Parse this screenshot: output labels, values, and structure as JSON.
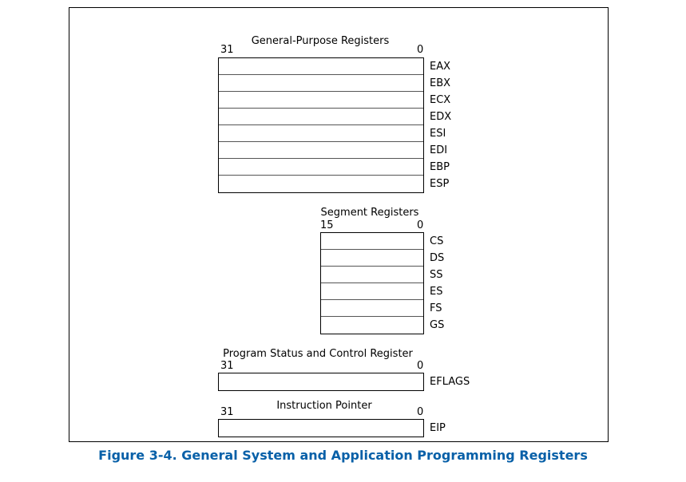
{
  "colors": {
    "caption": "#0860a8",
    "border": "#000000"
  },
  "general_purpose": {
    "title": "General-Purpose Registers",
    "high_bit": "31",
    "low_bit": "0",
    "registers": [
      "EAX",
      "EBX",
      "ECX",
      "EDX",
      "ESI",
      "EDI",
      "EBP",
      "ESP"
    ]
  },
  "segment": {
    "title": "Segment Registers",
    "high_bit": "15",
    "low_bit": "0",
    "registers": [
      "CS",
      "DS",
      "SS",
      "ES",
      "FS",
      "GS"
    ]
  },
  "status_control": {
    "title": "Program Status and Control Register",
    "high_bit": "31",
    "low_bit": "0",
    "registers": [
      "EFLAGS"
    ]
  },
  "instruction_pointer": {
    "title": "Instruction Pointer",
    "high_bit": "31",
    "low_bit": "0",
    "registers": [
      "EIP"
    ]
  },
  "caption": "Figure 3-4.  General System and Application Programming Registers"
}
